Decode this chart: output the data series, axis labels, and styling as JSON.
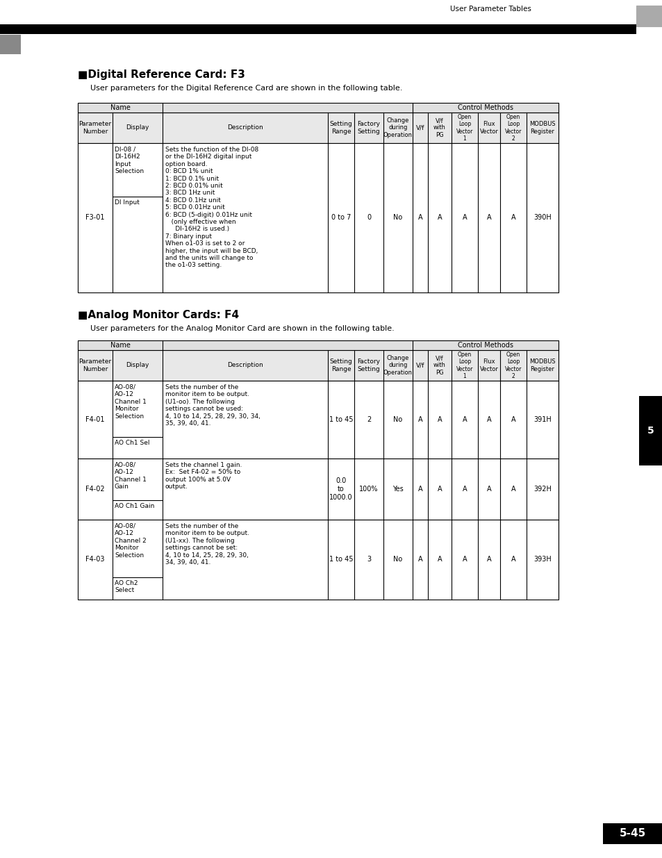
{
  "page_header": "User Parameter Tables",
  "page_number": "5-45",
  "section1_title": "■Digital Reference Card: F3",
  "section1_subtitle": "User parameters for the Digital Reference Card are shown in the following table.",
  "section2_title": "■Analog Monitor Cards: F4",
  "section2_subtitle": "User parameters for the Analog Monitor Card are shown in the following table.",
  "table1_rows": [
    {
      "param": "F3-01",
      "display_top": "DI-08 /\nDI-16H2\nInput\nSelection",
      "display_bottom": "DI Input",
      "description": "Sets the function of the DI-08\nor the DI-16H2 digital input\noption board.\n0: BCD 1% unit\n1: BCD 0.1% unit\n2: BCD 0.01% unit\n3: BCD 1Hz unit\n4: BCD 0.1Hz unit\n5: BCD 0.01Hz unit\n6: BCD (5-digit) 0.01Hz unit\n   (only effective when\n     DI-16H2 is used.)\n7: Binary input\nWhen o1-03 is set to 2 or\nhigher, the input will be BCD,\nand the units will change to\nthe o1-03 setting.",
      "setting_range": "0 to 7",
      "factory": "0",
      "change": "No",
      "vf": "A",
      "vf_pg": "A",
      "open1": "A",
      "flux": "A",
      "open2": "A",
      "modbus": "390H"
    }
  ],
  "table2_rows": [
    {
      "param": "F4-01",
      "display_top": "AO-08/\nAO-12\nChannel 1\nMonitor\nSelection",
      "display_bottom": "AO Ch1 Sel",
      "description": "Sets the number of the\nmonitor item to be output.\n(U1-oo). The following\nsettings cannot be used:\n4, 10 to 14, 25, 28, 29, 30, 34,\n35, 39, 40, 41.",
      "setting_range": "1 to 45",
      "factory": "2",
      "change": "No",
      "vf": "A",
      "vf_pg": "A",
      "open1": "A",
      "flux": "A",
      "open2": "A",
      "modbus": "391H"
    },
    {
      "param": "F4-02",
      "display_top": "AO-08/\nAO-12\nChannel 1\nGain",
      "display_bottom": "AO Ch1 Gain",
      "description": "Sets the channel 1 gain.\nEx:  Set F4-02 = 50% to\noutput 100% at 5.0V\noutput.",
      "setting_range": "0.0\nto\n1000.0",
      "factory": "100%",
      "change": "Yes",
      "vf": "A",
      "vf_pg": "A",
      "open1": "A",
      "flux": "A",
      "open2": "A",
      "modbus": "392H"
    },
    {
      "param": "F4-03",
      "display_top": "AO-08/\nAO-12\nChannel 2\nMonitor\nSelection",
      "display_bottom": "AO Ch2\nSelect",
      "description": "Sets the number of the\nmonitor item to be output.\n(U1-xx). The following\nsettings cannot be set:\n4, 10 to 14, 25, 28, 29, 30,\n34, 39, 40, 41.",
      "setting_range": "1 to 45",
      "factory": "3",
      "change": "No",
      "vf": "A",
      "vf_pg": "A",
      "open1": "A",
      "flux": "A",
      "open2": "A",
      "modbus": "393H"
    }
  ]
}
